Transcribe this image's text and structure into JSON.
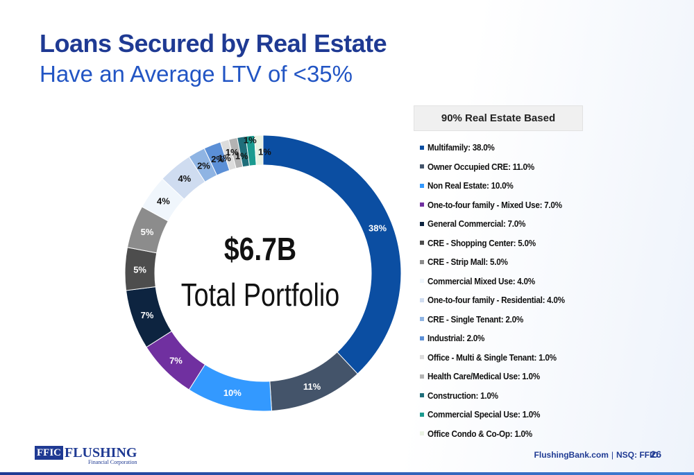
{
  "slide": {
    "title": "Loans Secured by Real Estate",
    "subtitle": "Have an Average LTV of <35%",
    "center_amount": "$6.7B",
    "center_label": "Total Portfolio",
    "legend_header": "90% Real Estate Based",
    "footer_site": "FlushingBank.com",
    "footer_sep": "|",
    "footer_ticker": "NSQ: FFIC",
    "page_number": "26",
    "logo_mark": "FFIC",
    "logo_name": "FLUSHING",
    "logo_sub": "Financial Corporation"
  },
  "chart_data": {
    "type": "pie",
    "donut": true,
    "title": "",
    "categories": [
      "Multifamily",
      "Owner Occupied CRE",
      "Non Real Estate",
      "One-to-four family - Mixed Use",
      "General Commercial",
      "CRE - Shopping Center",
      "CRE - Strip Mall",
      "Commercial Mixed Use",
      "One-to-four family - Residential",
      "CRE - Single Tenant",
      "Industrial",
      "Office - Multi & Single Tenant",
      "Health Care/Medical Use",
      "Construction",
      "Commercial Special Use",
      "Office Condo & Co-Op"
    ],
    "values": [
      38,
      11,
      10,
      7,
      7,
      5,
      5,
      4,
      4,
      2,
      2,
      1,
      1,
      1,
      1,
      1
    ],
    "data_labels": [
      "38%",
      "11%",
      "10%",
      "7%",
      "7%",
      "5%",
      "5%",
      "4%",
      "4%",
      "2%",
      "2%",
      "1%",
      "1%",
      "1%",
      "1%",
      "1%"
    ],
    "legend_labels": [
      "Multifamily: 38.0%",
      "Owner Occupied CRE: 11.0%",
      "Non Real Estate: 10.0%",
      "One-to-four family - Mixed Use: 7.0%",
      "General Commercial: 7.0%",
      "CRE - Shopping Center: 5.0%",
      "CRE - Strip Mall: 5.0%",
      "Commercial Mixed Use: 4.0%",
      "One-to-four family - Residential: 4.0%",
      "CRE - Single Tenant: 2.0%",
      "Industrial: 2.0%",
      "Office - Multi & Single Tenant: 1.0%",
      "Health Care/Medical Use: 1.0%",
      "Construction: 1.0%",
      "Commercial Special Use: 1.0%",
      "Office Condo & Co-Op: 1.0%"
    ],
    "colors": [
      "#0b4ea2",
      "#44546a",
      "#3399ff",
      "#7030a0",
      "#0d2440",
      "#4d4d4d",
      "#8c8c8c",
      "#f0f6fc",
      "#cfdcf0",
      "#8fb4e3",
      "#5b8fd6",
      "#dcdcdc",
      "#b3b3b3",
      "#1f6e7a",
      "#1b9a8f",
      "#eaf2e3"
    ],
    "label_colors": [
      "#ffffff",
      "#ffffff",
      "#ffffff",
      "#ffffff",
      "#ffffff",
      "#ffffff",
      "#ffffff",
      "#111111",
      "#111111",
      "#111111",
      "#111111",
      "#111111",
      "#111111",
      "#111111",
      "#111111",
      "#111111"
    ],
    "legend_position": "right"
  }
}
